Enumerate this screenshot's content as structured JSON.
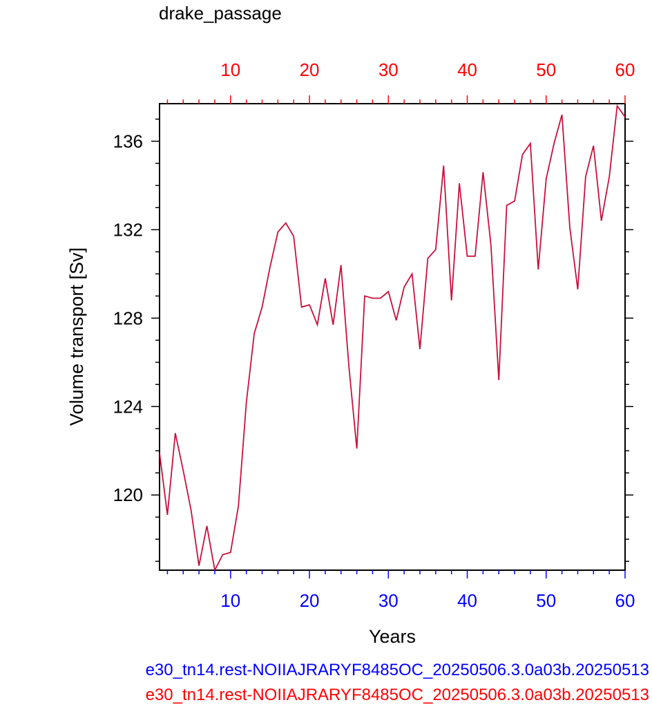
{
  "chart_data": {
    "type": "line",
    "title": "drake_passage",
    "xlabel": "Years",
    "ylabel": "Volume transport [Sv]",
    "xlim": [
      1,
      60
    ],
    "ylim": [
      116.6,
      137.7
    ],
    "x_ticks": [
      10,
      20,
      30,
      40,
      50,
      60
    ],
    "x_tick_labels": [
      "10",
      "20",
      "30",
      "40",
      "50",
      "60"
    ],
    "top_x_ticks": [
      10,
      20,
      30,
      40,
      50,
      60
    ],
    "top_x_tick_labels": [
      "10",
      "20",
      "30",
      "40",
      "50",
      "60"
    ],
    "y_ticks": [
      120,
      124,
      128,
      132,
      136
    ],
    "y_tick_labels": [
      "120",
      "124",
      "128",
      "132",
      "136"
    ],
    "grid": false,
    "colors": {
      "bottom_axis": "#0000ff",
      "top_axis": "#ff0000",
      "line": "#c8103a"
    },
    "series": [
      {
        "x": [
          1,
          2,
          3,
          4,
          5,
          6,
          7,
          8,
          9,
          10,
          11,
          12,
          13,
          14,
          15,
          16,
          17,
          18,
          19,
          20,
          21,
          22,
          23,
          24,
          25,
          26,
          27,
          28,
          29,
          30,
          31,
          32,
          33,
          34,
          35,
          36,
          37,
          38,
          39,
          40,
          41,
          42,
          43,
          44,
          45,
          46,
          47,
          48,
          49,
          50,
          51,
          52,
          53,
          54,
          55,
          56,
          57,
          58,
          59,
          60
        ],
        "values": [
          121.9,
          119.1,
          122.8,
          121.1,
          119.3,
          116.8,
          118.6,
          116.6,
          117.3,
          117.4,
          119.5,
          124.2,
          127.3,
          128.5,
          130.3,
          131.9,
          132.3,
          131.7,
          128.5,
          128.6,
          127.7,
          129.8,
          127.7,
          130.4,
          125.8,
          122.1,
          129.0,
          128.9,
          128.9,
          129.2,
          127.9,
          129.4,
          130.0,
          126.6,
          130.7,
          131.1,
          134.9,
          128.8,
          134.1,
          130.8,
          130.8,
          134.6,
          131.3,
          125.2,
          133.1,
          133.3,
          135.4,
          135.9,
          130.2,
          134.3,
          135.9,
          137.2,
          132.1,
          129.3,
          134.4,
          135.8,
          132.4,
          134.4,
          137.6,
          137.1
        ]
      }
    ]
  },
  "legend": {
    "items": [
      {
        "text": "e30_tn14.rest-NOIIAJRARYF8485OC_20250506.3.0a03b.20250513",
        "color": "#0000ff"
      },
      {
        "text": "e30_tn14.rest-NOIIAJRARYF8485OC_20250506.3.0a03b.20250513",
        "color": "#ff0000"
      }
    ]
  }
}
